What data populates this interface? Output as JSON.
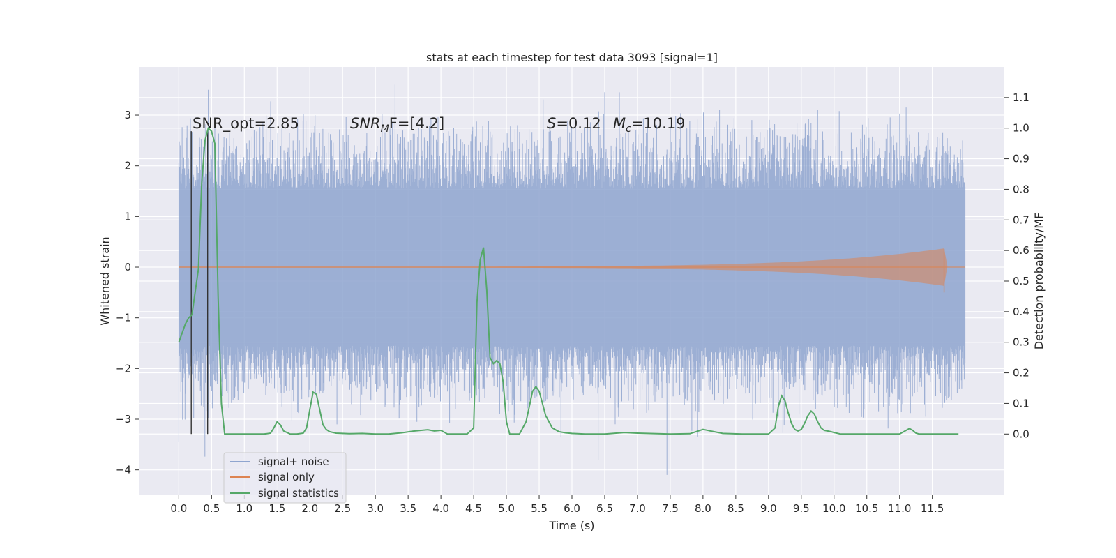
{
  "chart_data": {
    "type": "line",
    "title": "stats at each timestep for test data 3093 [signal=1]",
    "xlabel": "Time (s)",
    "ylabel": "Whitened strain",
    "y2label": "Detection probability/MF",
    "xlim": [
      -0.6,
      12.6
    ],
    "ylim": [
      -4.5,
      3.95
    ],
    "y2lim": [
      -0.2,
      1.2
    ],
    "x_ticks": [
      "0.0",
      "0.5",
      "1.0",
      "1.5",
      "2.0",
      "2.5",
      "3.0",
      "3.5",
      "4.0",
      "4.5",
      "5.0",
      "5.5",
      "6.0",
      "6.5",
      "7.0",
      "7.5",
      "8.0",
      "8.5",
      "9.0",
      "9.5",
      "10.0",
      "10.5",
      "11.0",
      "11.5"
    ],
    "y_ticks": [
      "3",
      "2",
      "1",
      "0",
      "−1",
      "−2",
      "−3",
      "−4"
    ],
    "y2_ticks": [
      "1.1",
      "1.0",
      "0.9",
      "0.8",
      "0.7",
      "0.6",
      "0.5",
      "0.4",
      "0.3",
      "0.2",
      "0.1",
      "0.0"
    ],
    "grid": true,
    "legend_position": "lower-left",
    "annotations": {
      "snr_opt": "SNR_opt=2.85",
      "snr_mf_main": "SNR",
      "snr_mf_sub": "M",
      "snr_mf_rest": "F=[4.2]",
      "s_italic": "S",
      "s_rest": "=0.12",
      "mc_main": "M",
      "mc_sub": "c",
      "mc_rest": "=10.19"
    },
    "vertical_markers_x": [
      0.19,
      0.44
    ],
    "series": [
      {
        "name": "signal+ noise",
        "color": "#8fa5cf",
        "x_range": [
          0.0,
          12.0
        ],
        "band_y": [
          -1.55,
          1.55
        ],
        "peaks": [
          [
            0.45,
            3.5
          ],
          [
            3.3,
            3.6
          ],
          [
            6.5,
            3.45
          ],
          [
            7.45,
            -4.1
          ],
          [
            6.4,
            -3.8
          ],
          [
            0.0,
            -3.45
          ],
          [
            9.75,
            3.1
          ],
          [
            11.1,
            3.15
          ],
          [
            11.75,
            2.3
          ]
        ]
      },
      {
        "name": "signal only",
        "color": "#dd8452",
        "x_range": [
          0.0,
          12.0
        ],
        "chirp_peak_x": 11.68,
        "chirp_peak_amplitude": 0.36
      },
      {
        "name": "signal statistics",
        "color": "#55a868",
        "axis": "right",
        "x": [
          0.0,
          0.1,
          0.15,
          0.2,
          0.3,
          0.35,
          0.4,
          0.45,
          0.5,
          0.55,
          0.6,
          0.65,
          0.7,
          0.8,
          1.0,
          1.2,
          1.3,
          1.4,
          1.45,
          1.5,
          1.55,
          1.6,
          1.7,
          1.8,
          1.9,
          1.95,
          2.0,
          2.05,
          2.1,
          2.15,
          2.2,
          2.25,
          2.3,
          2.4,
          2.6,
          2.8,
          3.0,
          3.2,
          3.4,
          3.6,
          3.8,
          3.9,
          4.0,
          4.1,
          4.2,
          4.3,
          4.4,
          4.5,
          4.55,
          4.6,
          4.65,
          4.7,
          4.75,
          4.8,
          4.85,
          4.9,
          4.95,
          5.0,
          5.05,
          5.1,
          5.15,
          5.2,
          5.3,
          5.4,
          5.45,
          5.5,
          5.55,
          5.6,
          5.7,
          5.8,
          5.9,
          6.0,
          6.2,
          6.5,
          6.8,
          7.0,
          7.5,
          7.8,
          8.0,
          8.3,
          8.6,
          9.0,
          9.1,
          9.15,
          9.2,
          9.25,
          9.3,
          9.35,
          9.4,
          9.45,
          9.5,
          9.55,
          9.6,
          9.65,
          9.7,
          9.75,
          9.8,
          9.85,
          9.9,
          9.95,
          10.0,
          10.1,
          10.2,
          10.3,
          10.5,
          10.8,
          11.0,
          11.1,
          11.15,
          11.2,
          11.25,
          11.3,
          11.4,
          11.6,
          11.8,
          11.9
        ],
        "y": [
          0.3,
          0.36,
          0.38,
          0.39,
          0.54,
          0.82,
          0.96,
          1.0,
          0.99,
          0.95,
          0.45,
          0.1,
          0.0,
          0.0,
          0.0,
          0.0,
          0.0,
          0.003,
          0.02,
          0.04,
          0.03,
          0.01,
          0.0,
          0.0,
          0.003,
          0.02,
          0.08,
          0.137,
          0.13,
          0.08,
          0.03,
          0.015,
          0.008,
          0.003,
          0.001,
          0.002,
          0.0,
          0.0,
          0.004,
          0.01,
          0.014,
          0.01,
          0.012,
          0.0,
          0.0,
          0.0,
          0.0,
          0.02,
          0.43,
          0.57,
          0.61,
          0.47,
          0.25,
          0.23,
          0.24,
          0.23,
          0.17,
          0.04,
          0.0,
          0.0,
          0.0,
          0.0,
          0.04,
          0.14,
          0.155,
          0.14,
          0.1,
          0.06,
          0.02,
          0.008,
          0.004,
          0.002,
          0.0,
          0.0,
          0.005,
          0.003,
          0.0,
          0.001,
          0.015,
          0.002,
          0.0,
          0.0,
          0.02,
          0.09,
          0.125,
          0.11,
          0.07,
          0.035,
          0.015,
          0.01,
          0.015,
          0.035,
          0.06,
          0.075,
          0.065,
          0.04,
          0.02,
          0.012,
          0.01,
          0.008,
          0.005,
          0.0,
          0.0,
          0.0,
          0.0,
          0.0,
          0.0,
          0.012,
          0.018,
          0.012,
          0.003,
          0.0,
          0.0,
          0.0,
          0.0,
          0.0
        ]
      }
    ]
  }
}
